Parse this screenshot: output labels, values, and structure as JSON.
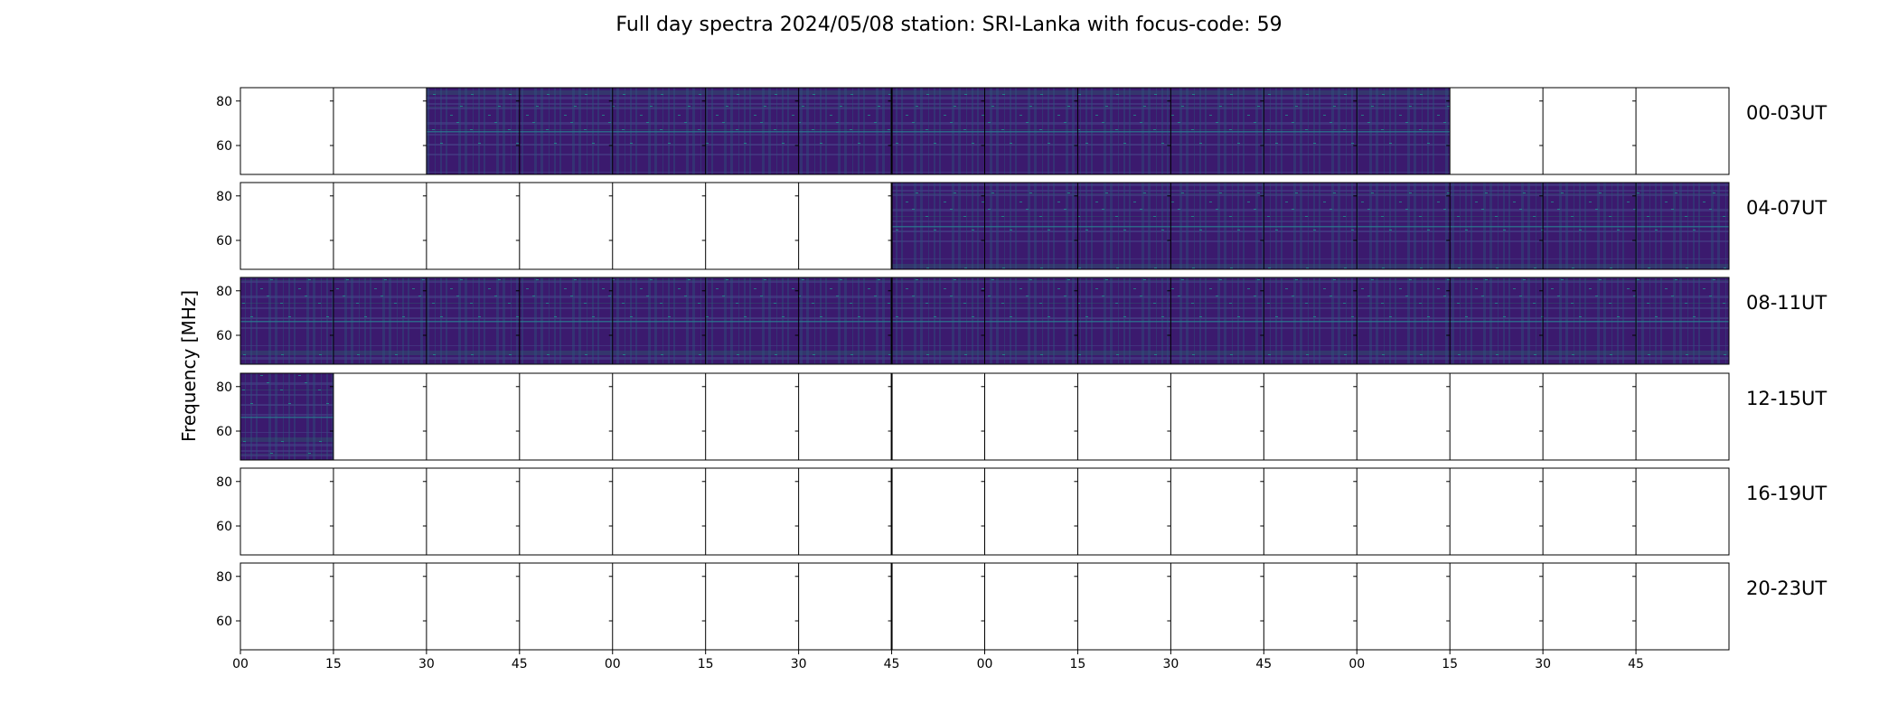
{
  "chart_data": {
    "type": "heatmap",
    "title": "Full day spectra 2024/05/08 station: SRI-Lanka with focus-code: 59",
    "ylabel": "Frequency [MHz]",
    "xlabel": "",
    "ylim": [
      47,
      86
    ],
    "yticks": [
      60,
      80
    ],
    "xticks": [
      "00",
      "15",
      "30",
      "45",
      "00",
      "15",
      "30",
      "45",
      "00",
      "15",
      "30",
      "45",
      "00",
      "15",
      "30",
      "45"
    ],
    "colormap": "viridis",
    "segments_per_row": 16,
    "segment_minutes": 15,
    "rows": [
      {
        "label": "00-03UT",
        "data_segments": [
          2,
          3,
          4,
          5,
          6,
          7,
          8,
          9,
          10,
          11,
          12
        ]
      },
      {
        "label": "04-07UT",
        "data_segments": [
          7,
          8,
          9,
          10,
          11,
          12,
          13,
          14,
          15
        ]
      },
      {
        "label": "08-11UT",
        "data_segments": [
          0,
          1,
          2,
          3,
          4,
          5,
          6,
          7,
          8,
          9,
          10,
          11,
          12,
          13,
          14,
          15
        ]
      },
      {
        "label": "12-15UT",
        "data_segments": [
          0
        ]
      },
      {
        "label": "16-19UT",
        "data_segments": []
      },
      {
        "label": "20-23UT",
        "data_segments": []
      }
    ]
  }
}
